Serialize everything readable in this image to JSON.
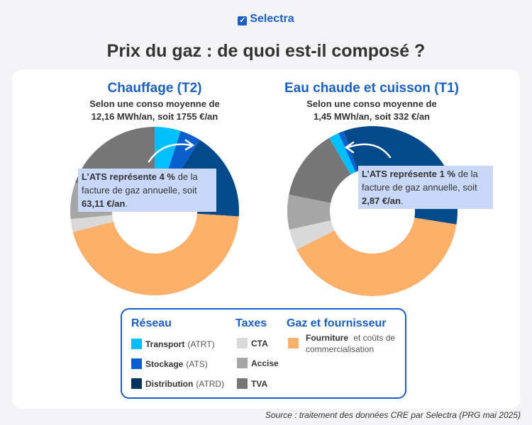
{
  "brand": "Selectra",
  "title": "Prix du gaz : de quoi est-il composé ?",
  "colors": {
    "Transport": "#00bfff",
    "Stockage": "#0a5fce",
    "Distribution": "#034a8a",
    "Fourniture": "#fcb06a",
    "CTA": "#d9d9d9",
    "Accise": "#a6a6a6",
    "TVA": "#767676",
    "accent": "#1a5fc4",
    "callout": "#c9d8f8"
  },
  "chart_data": [
    {
      "type": "pie",
      "donut": true,
      "title": "Chauffage (T2)",
      "subtitle_1": "Selon une conso moyenne de",
      "subtitle_2": "12,16 MWh/an, soit 1755 €/an",
      "categories": [
        "Transport",
        "Stockage",
        "Distribution",
        "Fourniture",
        "CTA",
        "Accise",
        "TVA"
      ],
      "values": [
        5,
        4,
        17,
        45,
        2.5,
        7,
        19.5
      ],
      "callout": {
        "bold1": "L’ATS représente 4 %",
        "text": " de la facture de gaz annuelle, soit ",
        "bold2": "63,11 €/an",
        "end": "."
      }
    },
    {
      "type": "pie",
      "donut": true,
      "title": "Eau chaude et cuisson (T1)",
      "subtitle_1": "Selon une conso moyenne de",
      "subtitle_2": "1,45 MWh/an, soit 332 €/an",
      "categories": [
        "Transport",
        "Stockage",
        "Distribution",
        "Fourniture",
        "CTA",
        "Accise",
        "TVA"
      ],
      "values": [
        2,
        1,
        33,
        40,
        4,
        6.6,
        13.4
      ],
      "callout": {
        "bold1": "L’ATS représente 1 %",
        "text": " de la facture de gaz annuelle, soit ",
        "bold2": "2,87 €/an",
        "end": "."
      }
    }
  ],
  "legend": {
    "reseau": {
      "title": "Réseau",
      "items": [
        {
          "b": "Transport",
          "n": "(ATRT)"
        },
        {
          "b": "Stockage",
          "n": "(ATS)"
        },
        {
          "b": "Distribution",
          "n": "(ATRD)"
        }
      ]
    },
    "taxes": {
      "title": "Taxes",
      "items": [
        {
          "b": "CTA"
        },
        {
          "b": "Accise"
        },
        {
          "b": "TVA"
        }
      ]
    },
    "gaz": {
      "title": "Gaz et fournisseur",
      "b": "Fourniture",
      "n1": " et coûts de",
      "n2": "commercialisation"
    }
  },
  "source": "Source : traitement des données CRE par Selectra (PRG mai 2025)"
}
